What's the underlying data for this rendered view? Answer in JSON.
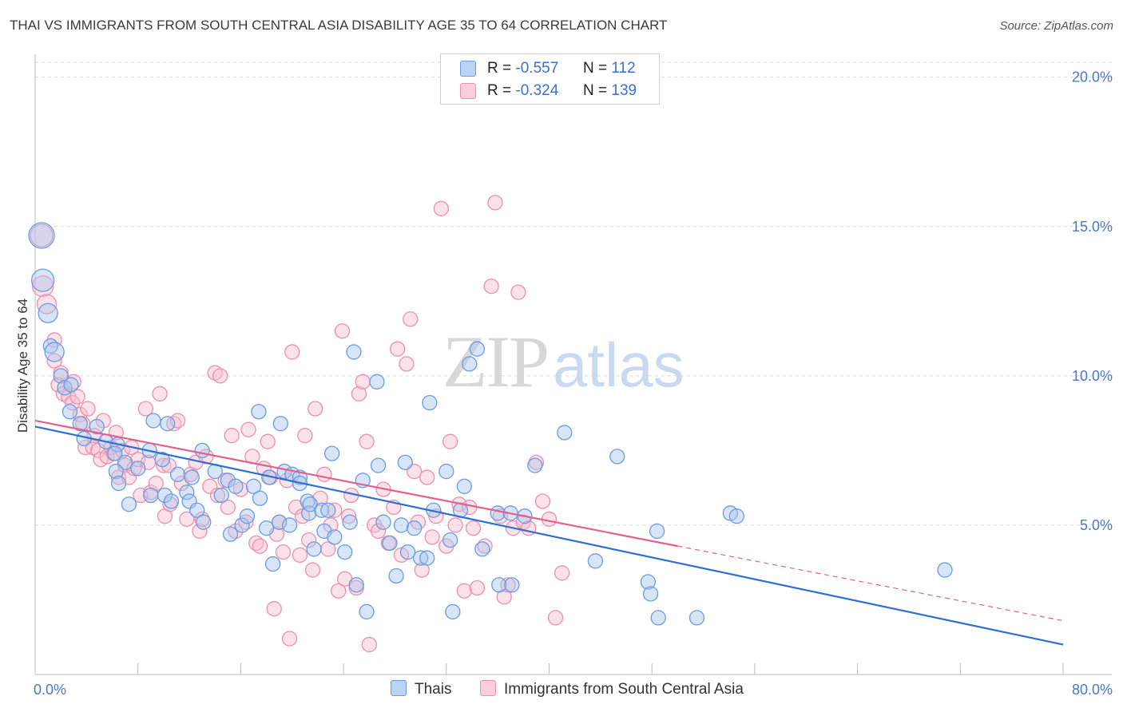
{
  "title": "THAI VS IMMIGRANTS FROM SOUTH CENTRAL ASIA DISABILITY AGE 35 TO 64 CORRELATION CHART",
  "source": "Source: ZipAtlas.com",
  "watermark": {
    "zip": "ZIP",
    "atlas": "atlas"
  },
  "legend_top": {
    "rows": [
      {
        "r_label": "R =",
        "r_value": "-0.557",
        "n_label": "N =",
        "n_value": "112"
      },
      {
        "r_label": "R =",
        "r_value": "-0.324",
        "n_label": "N =",
        "n_value": "139"
      }
    ]
  },
  "legend_bottom": {
    "items": [
      "Thais",
      "Immigrants from South Central Asia"
    ]
  },
  "colors": {
    "blue_fill": "#a9c6ee",
    "blue_stroke": "#6b9be0",
    "blue_line": "#2f6fd0",
    "pink_fill": "#f6bfd0",
    "pink_stroke": "#ec8fae",
    "pink_line": "#e3608b",
    "grid": "#d9d9d9",
    "tick_text": "#4a78c8"
  },
  "chart_data": {
    "type": "scatter",
    "title": "THAI VS IMMIGRANTS FROM SOUTH CENTRAL ASIA DISABILITY AGE 35 TO 64 CORRELATION CHART",
    "xlabel": "",
    "ylabel": "Disability Age 35 to 64",
    "xlim": [
      0,
      80
    ],
    "ylim": [
      0,
      20.5
    ],
    "x_tick_labels": [
      "0.0%",
      "80.0%"
    ],
    "y_ticks": [
      5,
      10,
      15,
      20
    ],
    "y_tick_labels": [
      "5.0%",
      "10.0%",
      "15.0%",
      "20.0%"
    ],
    "grid": true,
    "legend_position": "bottom",
    "series": [
      {
        "name": "Thais",
        "color": "#6b9be0",
        "trend": {
          "x": [
            0,
            80
          ],
          "y": [
            8.3,
            1.0
          ]
        },
        "big_points": [
          [
            0.5,
            14.7,
            16
          ],
          [
            0.6,
            13.2,
            14
          ],
          [
            1.0,
            12.1,
            12
          ],
          [
            1.5,
            10.8,
            12
          ]
        ],
        "points": [
          [
            1.2,
            11.0
          ],
          [
            2.0,
            10.0
          ],
          [
            2.3,
            9.6
          ],
          [
            2.8,
            9.7
          ],
          [
            2.7,
            8.8
          ],
          [
            4.8,
            8.3
          ],
          [
            3.5,
            8.4
          ],
          [
            3.8,
            7.9
          ],
          [
            5.5,
            7.8
          ],
          [
            6.4,
            7.7
          ],
          [
            7.0,
            7.1
          ],
          [
            6.2,
            7.4
          ],
          [
            6.3,
            6.8
          ],
          [
            6.5,
            6.4
          ],
          [
            7.3,
            5.7
          ],
          [
            8.0,
            6.9
          ],
          [
            8.9,
            7.5
          ],
          [
            9.0,
            6.0
          ],
          [
            9.2,
            8.5
          ],
          [
            10.3,
            8.4
          ],
          [
            9.9,
            7.2
          ],
          [
            10.1,
            6.0
          ],
          [
            11.1,
            6.7
          ],
          [
            10.6,
            5.8
          ],
          [
            12.2,
            6.6
          ],
          [
            11.8,
            6.1
          ],
          [
            12.0,
            5.8
          ],
          [
            12.6,
            5.5
          ],
          [
            13.0,
            7.5
          ],
          [
            13.1,
            5.1
          ],
          [
            14.0,
            6.8
          ],
          [
            14.5,
            6.0
          ],
          [
            15.0,
            6.5
          ],
          [
            15.2,
            4.7
          ],
          [
            15.6,
            6.3
          ],
          [
            16.1,
            5.0
          ],
          [
            16.5,
            5.3
          ],
          [
            17.0,
            6.3
          ],
          [
            17.4,
            8.8
          ],
          [
            17.5,
            5.9
          ],
          [
            18.0,
            4.9
          ],
          [
            18.2,
            6.6
          ],
          [
            18.5,
            3.7
          ],
          [
            19.0,
            5.1
          ],
          [
            19.1,
            8.4
          ],
          [
            19.4,
            6.8
          ],
          [
            19.8,
            5.0
          ],
          [
            20.0,
            6.7
          ],
          [
            20.6,
            6.6
          ],
          [
            20.6,
            6.4
          ],
          [
            21.2,
            5.8
          ],
          [
            21.3,
            5.4
          ],
          [
            21.4,
            5.7
          ],
          [
            21.7,
            4.2
          ],
          [
            22.3,
            5.5
          ],
          [
            22.5,
            4.8
          ],
          [
            22.8,
            5.5
          ],
          [
            23.1,
            7.4
          ],
          [
            23.3,
            4.6
          ],
          [
            24.1,
            4.1
          ],
          [
            24.5,
            5.1
          ],
          [
            24.8,
            10.8
          ],
          [
            25.0,
            3.0
          ],
          [
            25.5,
            6.5
          ],
          [
            25.8,
            2.1
          ],
          [
            26.6,
            9.8
          ],
          [
            26.7,
            7.0
          ],
          [
            27.1,
            5.1
          ],
          [
            27.6,
            4.4
          ],
          [
            28.1,
            3.3
          ],
          [
            28.5,
            5.0
          ],
          [
            28.8,
            7.1
          ],
          [
            29.0,
            4.1
          ],
          [
            29.5,
            4.9
          ],
          [
            30.0,
            3.9
          ],
          [
            30.5,
            3.9
          ],
          [
            30.7,
            9.1
          ],
          [
            31.0,
            5.5
          ],
          [
            32.0,
            6.8
          ],
          [
            32.3,
            4.5
          ],
          [
            32.5,
            2.1
          ],
          [
            33.1,
            5.5
          ],
          [
            33.4,
            6.3
          ],
          [
            33.8,
            10.4
          ],
          [
            34.4,
            10.9
          ],
          [
            34.8,
            4.2
          ],
          [
            36.0,
            5.4
          ],
          [
            36.1,
            3.0
          ],
          [
            37.0,
            5.4
          ],
          [
            37.1,
            3.0
          ],
          [
            38.1,
            5.3
          ],
          [
            38.9,
            7.0
          ],
          [
            41.2,
            8.1
          ],
          [
            43.6,
            3.8
          ],
          [
            45.3,
            7.3
          ],
          [
            47.7,
            3.1
          ],
          [
            47.9,
            2.7
          ],
          [
            48.4,
            4.8
          ],
          [
            48.5,
            1.9
          ],
          [
            51.5,
            1.9
          ],
          [
            54.1,
            5.4
          ],
          [
            54.6,
            5.3
          ],
          [
            70.8,
            3.5
          ]
        ]
      },
      {
        "name": "Immigrants from South Central Asia",
        "color": "#ec8fae",
        "trend": {
          "x": [
            0,
            50
          ],
          "y": [
            8.5,
            4.3
          ]
        },
        "trend_dashed": {
          "x": [
            50,
            80
          ],
          "y": [
            4.3,
            1.8
          ]
        },
        "big_points": [
          [
            0.5,
            14.7,
            14
          ],
          [
            0.6,
            13.0,
            13
          ],
          [
            0.9,
            12.4,
            12
          ]
        ],
        "points": [
          [
            1.5,
            11.2
          ],
          [
            1.5,
            10.5
          ],
          [
            1.8,
            9.7
          ],
          [
            2.0,
            10.1
          ],
          [
            2.2,
            9.4
          ],
          [
            2.6,
            9.3
          ],
          [
            2.9,
            9.1
          ],
          [
            3.0,
            9.8
          ],
          [
            3.3,
            9.3
          ],
          [
            3.5,
            8.7
          ],
          [
            3.7,
            8.4
          ],
          [
            3.9,
            7.6
          ],
          [
            4.1,
            8.9
          ],
          [
            4.5,
            7.6
          ],
          [
            4.6,
            8.0
          ],
          [
            4.9,
            7.5
          ],
          [
            5.1,
            7.2
          ],
          [
            5.3,
            8.5
          ],
          [
            5.6,
            7.3
          ],
          [
            5.9,
            7.6
          ],
          [
            6.1,
            7.4
          ],
          [
            6.3,
            8.1
          ],
          [
            6.5,
            6.6
          ],
          [
            6.8,
            7.5
          ],
          [
            7.0,
            7.0
          ],
          [
            7.3,
            6.6
          ],
          [
            7.5,
            7.6
          ],
          [
            7.7,
            6.9
          ],
          [
            8.0,
            7.2
          ],
          [
            8.2,
            6.0
          ],
          [
            8.6,
            8.9
          ],
          [
            8.8,
            7.1
          ],
          [
            9.0,
            6.1
          ],
          [
            9.4,
            6.4
          ],
          [
            9.7,
            9.4
          ],
          [
            10.0,
            7.0
          ],
          [
            10.1,
            5.3
          ],
          [
            10.4,
            7.0
          ],
          [
            10.5,
            5.7
          ],
          [
            10.8,
            8.4
          ],
          [
            11.1,
            8.5
          ],
          [
            11.4,
            6.4
          ],
          [
            11.8,
            5.2
          ],
          [
            12.1,
            6.7
          ],
          [
            12.5,
            7.1
          ],
          [
            12.8,
            4.8
          ],
          [
            13.0,
            5.2
          ],
          [
            13.3,
            7.3
          ],
          [
            13.6,
            6.3
          ],
          [
            14.0,
            10.1
          ],
          [
            14.2,
            6.0
          ],
          [
            14.4,
            10.0
          ],
          [
            14.8,
            6.5
          ],
          [
            15.0,
            5.6
          ],
          [
            15.3,
            8.0
          ],
          [
            15.6,
            4.8
          ],
          [
            16.0,
            6.2
          ],
          [
            16.4,
            5.1
          ],
          [
            16.6,
            8.2
          ],
          [
            16.9,
            7.3
          ],
          [
            17.2,
            4.4
          ],
          [
            17.5,
            4.3
          ],
          [
            17.8,
            6.9
          ],
          [
            18.1,
            7.8
          ],
          [
            18.3,
            6.6
          ],
          [
            18.6,
            2.2
          ],
          [
            18.8,
            4.7
          ],
          [
            19.0,
            5.1
          ],
          [
            19.3,
            4.1
          ],
          [
            19.6,
            6.5
          ],
          [
            19.8,
            1.2
          ],
          [
            20.0,
            10.8
          ],
          [
            20.3,
            5.6
          ],
          [
            20.6,
            4.0
          ],
          [
            20.8,
            5.3
          ],
          [
            21.0,
            8.0
          ],
          [
            21.3,
            4.5
          ],
          [
            21.6,
            3.5
          ],
          [
            21.8,
            8.9
          ],
          [
            22.2,
            5.9
          ],
          [
            22.5,
            6.7
          ],
          [
            22.8,
            4.2
          ],
          [
            23.0,
            5.0
          ],
          [
            23.3,
            5.5
          ],
          [
            23.6,
            2.8
          ],
          [
            23.9,
            11.5
          ],
          [
            24.1,
            3.2
          ],
          [
            24.4,
            5.3
          ],
          [
            24.6,
            6.0
          ],
          [
            25.0,
            2.9
          ],
          [
            25.2,
            9.4
          ],
          [
            25.5,
            9.8
          ],
          [
            25.8,
            7.8
          ],
          [
            26.0,
            1.0
          ],
          [
            26.4,
            5.0
          ],
          [
            26.7,
            4.8
          ],
          [
            27.1,
            6.2
          ],
          [
            27.5,
            4.4
          ],
          [
            27.9,
            5.6
          ],
          [
            28.2,
            10.9
          ],
          [
            28.5,
            4.0
          ],
          [
            28.9,
            10.4
          ],
          [
            29.2,
            11.9
          ],
          [
            29.5,
            6.8
          ],
          [
            29.8,
            5.1
          ],
          [
            30.1,
            3.5
          ],
          [
            30.5,
            6.6
          ],
          [
            30.9,
            4.6
          ],
          [
            31.2,
            5.3
          ],
          [
            31.6,
            15.6
          ],
          [
            32.0,
            4.3
          ],
          [
            32.3,
            7.8
          ],
          [
            32.7,
            5.0
          ],
          [
            33.0,
            5.7
          ],
          [
            33.4,
            2.8
          ],
          [
            33.8,
            5.6
          ],
          [
            34.1,
            4.9
          ],
          [
            34.4,
            2.9
          ],
          [
            35.0,
            4.3
          ],
          [
            35.5,
            13.0
          ],
          [
            35.8,
            15.8
          ],
          [
            36.2,
            5.3
          ],
          [
            36.5,
            2.6
          ],
          [
            36.8,
            3.0
          ],
          [
            37.2,
            4.9
          ],
          [
            37.6,
            12.8
          ],
          [
            38.0,
            5.1
          ],
          [
            38.4,
            4.9
          ],
          [
            39.0,
            7.1
          ],
          [
            39.5,
            5.8
          ],
          [
            40.0,
            5.2
          ],
          [
            40.5,
            1.9
          ],
          [
            41.0,
            3.4
          ]
        ]
      }
    ]
  }
}
